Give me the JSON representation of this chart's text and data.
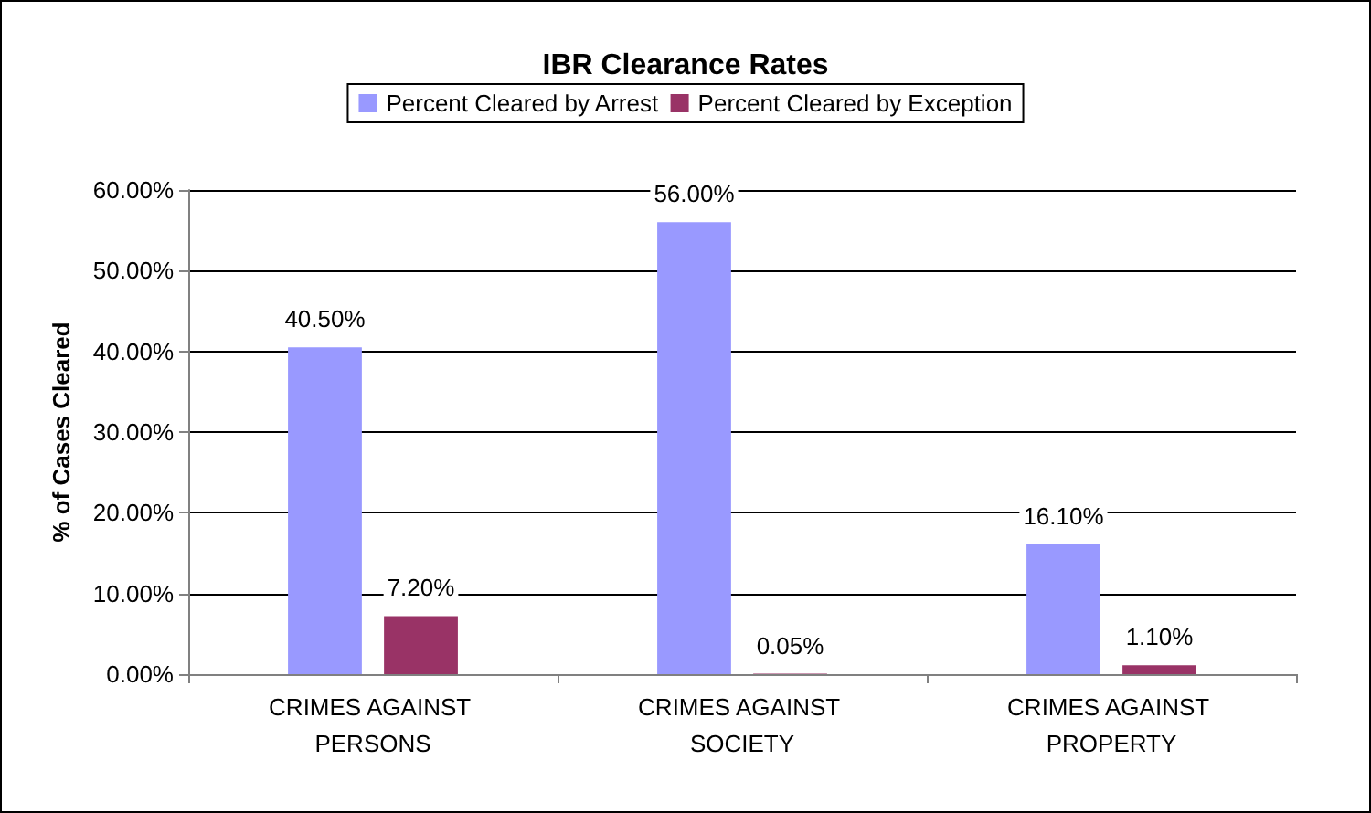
{
  "chart_data": {
    "type": "bar",
    "title": "IBR Clearance Rates",
    "ylabel": "% of Cases Cleared",
    "categories": [
      "CRIMES AGAINST PERSONS",
      "CRIMES AGAINST SOCIETY",
      "CRIMES AGAINST PROPERTY"
    ],
    "series": [
      {
        "name": "Percent Cleared by Arrest",
        "color": "#9999ff",
        "values": [
          40.5,
          56,
          16.1
        ],
        "value_labels": [
          "40.50%",
          "56.00%",
          "16.10%"
        ]
      },
      {
        "name": "Percent Cleared by Exception",
        "color": "#993366",
        "values": [
          7.2,
          0.05,
          1.1
        ],
        "value_labels": [
          "7.20%",
          "0.05%",
          "1.10%"
        ]
      }
    ],
    "ylim": [
      0,
      60
    ],
    "yticks": [
      {
        "value": 0,
        "label": "0.00%"
      },
      {
        "value": 10,
        "label": "10.00%"
      },
      {
        "value": 20,
        "label": "20.00%"
      },
      {
        "value": 30,
        "label": "30.00%"
      },
      {
        "value": 40,
        "label": "40.00%"
      },
      {
        "value": 50,
        "label": "50.00%"
      },
      {
        "value": 60,
        "label": "60.00%"
      }
    ],
    "grid": "y",
    "legend": "top"
  }
}
